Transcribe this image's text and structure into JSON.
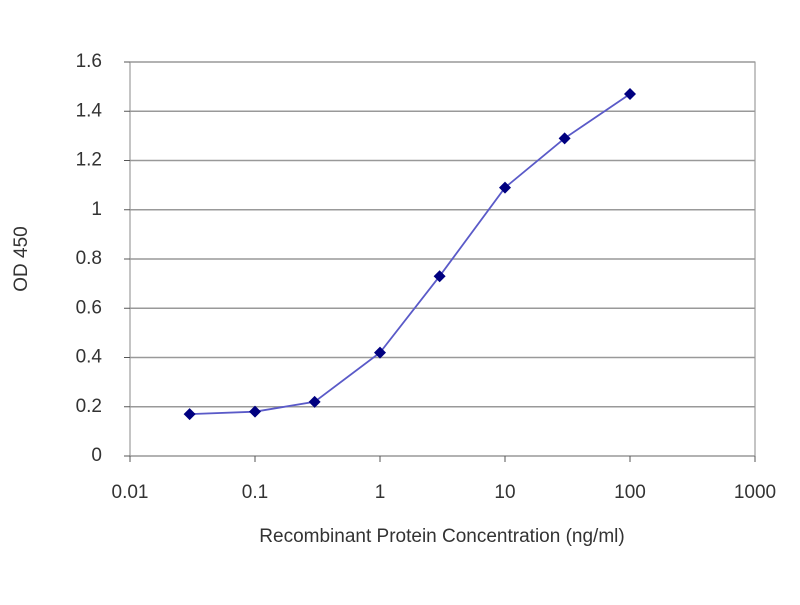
{
  "chart_data": {
    "type": "line",
    "xlabel": "Recombinant Protein Concentration (ng/ml)",
    "ylabel": "OD 450",
    "x": [
      0.03,
      0.1,
      0.3,
      1,
      3,
      10,
      30,
      100
    ],
    "values": [
      0.17,
      0.18,
      0.22,
      0.42,
      0.73,
      1.09,
      1.29,
      1.47
    ],
    "color": "#5a5ac8",
    "marker_color": "#000080",
    "xscale": "log",
    "xlim": [
      0.01,
      1000
    ],
    "xticks": [
      0.01,
      0.1,
      1,
      10,
      100,
      1000
    ],
    "ylim": [
      0,
      1.6
    ],
    "yticks": [
      0,
      0.2,
      0.4,
      0.6,
      0.8,
      1,
      1.2,
      1.4,
      1.6
    ],
    "grid": true
  }
}
